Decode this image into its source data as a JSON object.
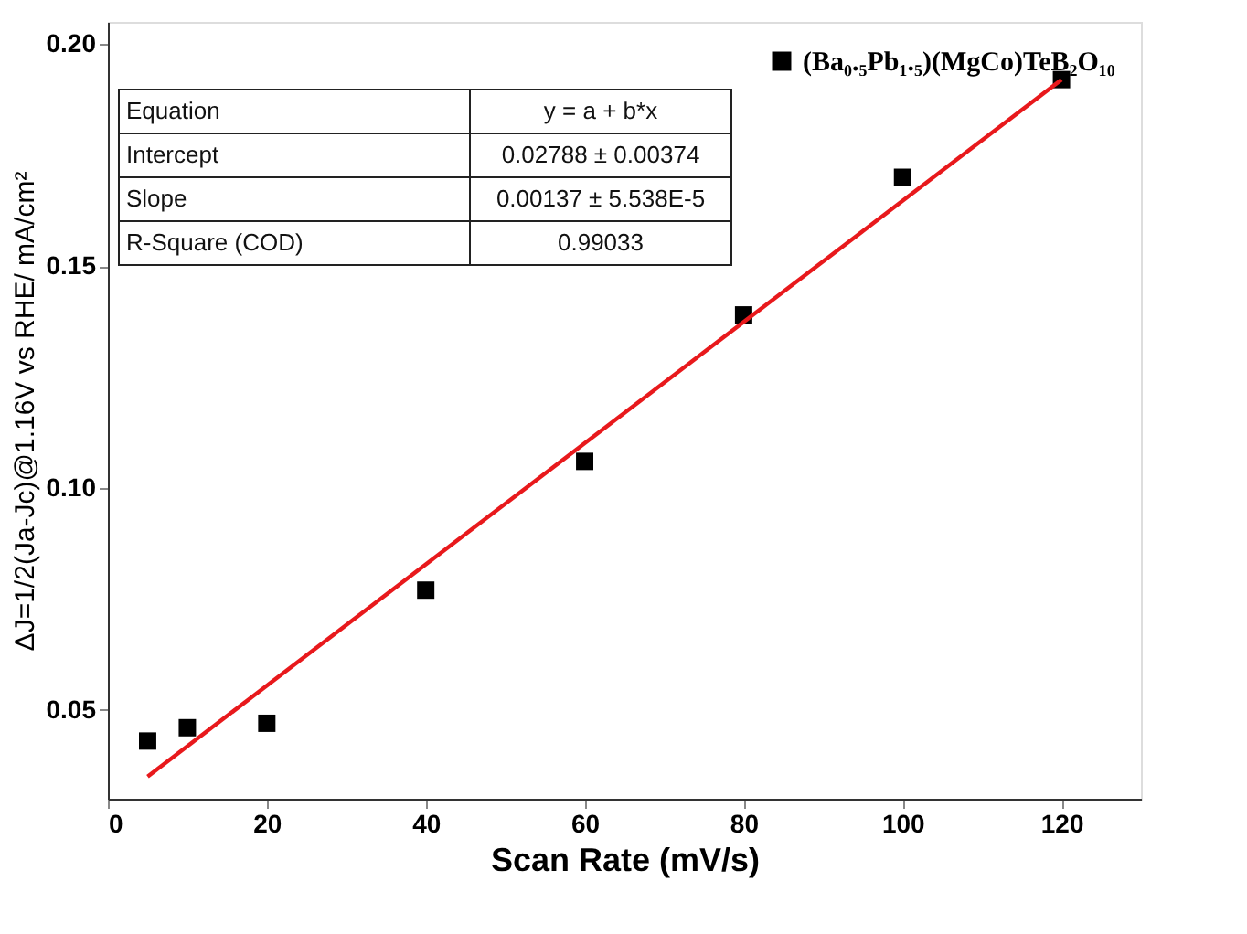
{
  "chart_data": {
    "type": "scatter",
    "xlabel": "Scan Rate (mV/s)",
    "ylabel": "ΔJ=1/2(Ja-Jc)@1.16V vs RHE/ mA/cm²",
    "xlim": [
      0,
      130
    ],
    "xticks": [
      0,
      20,
      40,
      60,
      80,
      100,
      120
    ],
    "ylim": [
      0.03,
      0.205
    ],
    "yticks": [
      0.05,
      {
        "value": 0.1,
        "label": "0.10"
      },
      0.15,
      {
        "value": 0.2,
        "label": "0.20"
      }
    ],
    "grid": false,
    "legend": "top right",
    "series": [
      {
        "name": "(Ba₀.₅Pb₁.₅)(MgCo)TeB₂O₁₀",
        "marker": "square",
        "color": "#000000",
        "x": [
          5,
          10,
          20,
          40,
          60,
          80,
          100,
          120
        ],
        "values": [
          0.043,
          0.046,
          0.047,
          0.077,
          0.106,
          0.139,
          0.17,
          0.192
        ]
      },
      {
        "type": "line",
        "color": "#e8191c",
        "line_style": "solid",
        "x": [
          5,
          120
        ],
        "values": [
          0.035,
          0.192
        ]
      }
    ],
    "annotations": [
      "Equation",
      "y = a + b*x",
      "Intercept",
      "0.02788 ± 0.00374",
      "Slope",
      "0.00137 ± 5.538E-5",
      "R-Square (COD)",
      "0.99033"
    ]
  }
}
